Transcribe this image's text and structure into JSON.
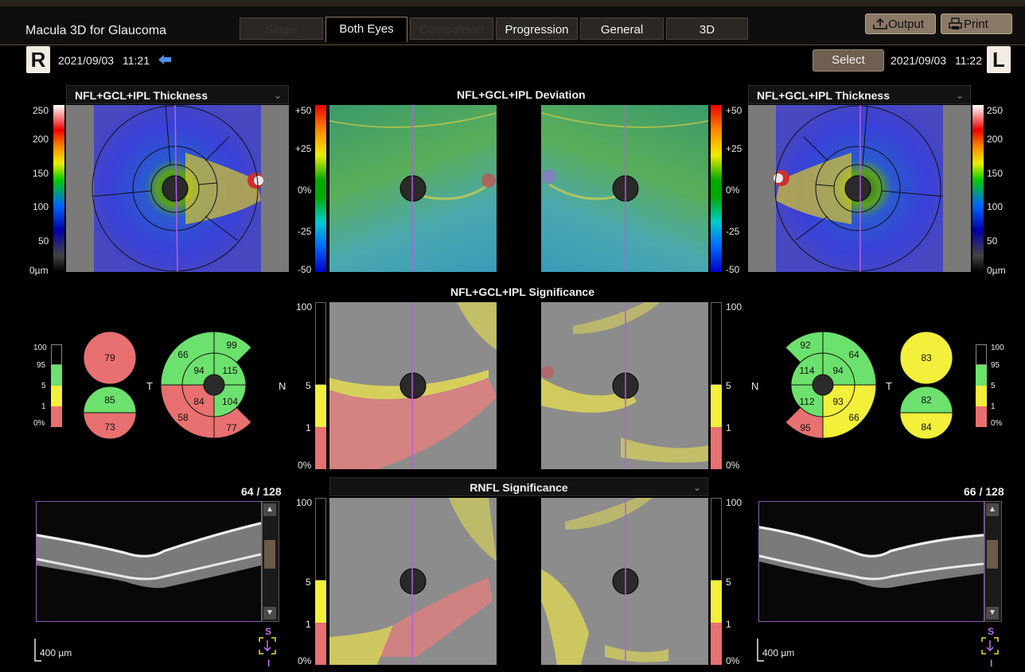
{
  "app": {
    "title": "Macula 3D for Glaucoma"
  },
  "tabs": [
    {
      "label": "Single",
      "state": "disabled"
    },
    {
      "label": "Both Eyes",
      "state": "active"
    },
    {
      "label": "Comparison",
      "state": "disabled"
    },
    {
      "label": "Progression",
      "state": "normal"
    },
    {
      "label": "General",
      "state": "normal"
    },
    {
      "label": "3D",
      "state": "normal"
    }
  ],
  "toolbar": {
    "output_label": "Output",
    "print_label": "Print"
  },
  "right_eye": {
    "badge": "R",
    "date": "2021/09/03",
    "time": "11:21",
    "back_icon": "arrow-left-icon"
  },
  "left_eye": {
    "badge": "L",
    "date": "2021/09/03",
    "time": "11:22",
    "select_label": "Select"
  },
  "thickness": {
    "title": "NFL+GCL+IPL Thickness",
    "scale": [
      "250",
      "200",
      "150",
      "100",
      "50",
      "0µm"
    ]
  },
  "deviation": {
    "title": "NFL+GCL+IPL Deviation",
    "scale": [
      "+50",
      "+25",
      "0%",
      "-25",
      "-50"
    ]
  },
  "significance": {
    "title": "NFL+GCL+IPL Significance",
    "scale": [
      "100",
      "5",
      "1",
      "0%"
    ]
  },
  "rnfl": {
    "title": "RNFL Significance",
    "scale": [
      "100",
      "5",
      "1",
      "0%"
    ]
  },
  "small_scale": [
    "100",
    "95",
    "5",
    "1",
    "0%"
  ],
  "right_sectors": {
    "superior_total": "79",
    "inferior_upper": "85",
    "inferior_lower": "73",
    "temporal_label": "T",
    "outer_st": "66",
    "outer_sn": "99",
    "inner_s": "94",
    "inner_n": "115",
    "inner_i": "84",
    "inner_n_low": "104",
    "outer_it": "58",
    "outer_in": "77"
  },
  "left_sectors": {
    "nasal_label": "N",
    "temporal_label": "T",
    "outer_sn": "92",
    "outer_st": "64",
    "inner_n": "114",
    "inner_s": "94",
    "inner_ni": "112",
    "inner_i": "93",
    "outer_in": "95",
    "outer_it": "66",
    "superior_total": "83",
    "inferior_upper": "82",
    "inferior_lower": "84"
  },
  "right_n_label": "N",
  "oct_right": {
    "slice": "64 / 128",
    "scalebar": "400 µm"
  },
  "oct_left": {
    "slice": "66 / 128",
    "scalebar": "400 µm"
  },
  "orientation": {
    "top": "S",
    "bottom": "I"
  },
  "colors": {
    "green": "#6de16d",
    "yellow": "#f2f03a",
    "red": "#e87070",
    "accent_purple": "#b060e0"
  }
}
